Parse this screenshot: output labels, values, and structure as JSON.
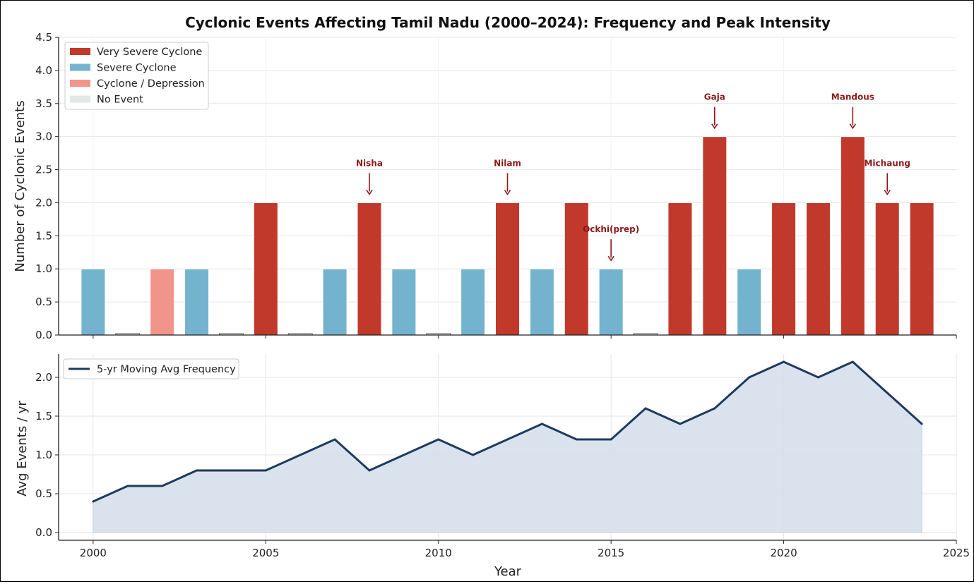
{
  "colors": {
    "very_severe": "#c0392b",
    "severe": "#74b3ce",
    "cyclone": "#f1948a",
    "no_event": "#e5e8e8",
    "line": "#1f3a5f",
    "fill": "#d6e0eb",
    "annotation": "#8b1a1a",
    "grid": "#e6e6e6"
  },
  "chart_data": [
    {
      "type": "bar",
      "title": "Cyclonic Events Affecting Tamil Nadu (2000–2024): Frequency and Peak Intensity",
      "xlabel": "Year",
      "ylabel": "Number of Cyclonic Events",
      "ylim": [
        0,
        4.5
      ],
      "xlim": [
        1999,
        2025
      ],
      "grid": "y",
      "legend_position": "top-left",
      "yticks": [
        "0.0",
        "0.5",
        "1.0",
        "1.5",
        "2.0",
        "2.5",
        "3.0",
        "3.5",
        "4.0",
        "4.5"
      ],
      "legend": [
        {
          "key": "very_severe",
          "label": "Very Severe Cyclone"
        },
        {
          "key": "severe",
          "label": "Severe Cyclone"
        },
        {
          "key": "cyclone",
          "label": "Cyclone / Depression"
        },
        {
          "key": "no_event",
          "label": "No Event"
        }
      ],
      "bars": [
        {
          "year": 2000,
          "value": 1,
          "category": "severe"
        },
        {
          "year": 2001,
          "value": 0,
          "category": "no_event"
        },
        {
          "year": 2002,
          "value": 1,
          "category": "cyclone"
        },
        {
          "year": 2003,
          "value": 1,
          "category": "severe"
        },
        {
          "year": 2004,
          "value": 0,
          "category": "no_event"
        },
        {
          "year": 2005,
          "value": 2,
          "category": "very_severe"
        },
        {
          "year": 2006,
          "value": 0,
          "category": "no_event"
        },
        {
          "year": 2007,
          "value": 1,
          "category": "severe"
        },
        {
          "year": 2008,
          "value": 2,
          "category": "very_severe"
        },
        {
          "year": 2009,
          "value": 1,
          "category": "severe"
        },
        {
          "year": 2010,
          "value": 0,
          "category": "no_event"
        },
        {
          "year": 2011,
          "value": 1,
          "category": "severe"
        },
        {
          "year": 2012,
          "value": 2,
          "category": "very_severe"
        },
        {
          "year": 2013,
          "value": 1,
          "category": "severe"
        },
        {
          "year": 2014,
          "value": 2,
          "category": "very_severe"
        },
        {
          "year": 2015,
          "value": 1,
          "category": "severe"
        },
        {
          "year": 2016,
          "value": 0,
          "category": "no_event"
        },
        {
          "year": 2017,
          "value": 2,
          "category": "very_severe"
        },
        {
          "year": 2018,
          "value": 3,
          "category": "very_severe"
        },
        {
          "year": 2019,
          "value": 1,
          "category": "severe"
        },
        {
          "year": 2020,
          "value": 2,
          "category": "very_severe"
        },
        {
          "year": 2021,
          "value": 2,
          "category": "very_severe"
        },
        {
          "year": 2022,
          "value": 3,
          "category": "very_severe"
        },
        {
          "year": 2023,
          "value": 2,
          "category": "very_severe"
        },
        {
          "year": 2024,
          "value": 2,
          "category": "very_severe"
        }
      ],
      "annotations": [
        {
          "year": 2008,
          "label": "Nisha"
        },
        {
          "year": 2012,
          "label": "Nilam"
        },
        {
          "year": 2015,
          "label": "Ockhi(prep)"
        },
        {
          "year": 2018,
          "label": "Gaja"
        },
        {
          "year": 2022,
          "label": "Mandous"
        },
        {
          "year": 2023,
          "label": "Michaung"
        }
      ]
    },
    {
      "type": "area",
      "xlabel": "Year",
      "ylabel": "Avg Events / yr",
      "ylim": [
        -0.1,
        2.3
      ],
      "xlim": [
        1999,
        2025
      ],
      "grid": "both",
      "legend_position": "top-left",
      "xticks": [
        "2000",
        "2005",
        "2010",
        "2015",
        "2020",
        "2025"
      ],
      "yticks": [
        "0.0",
        "0.5",
        "1.0",
        "1.5",
        "2.0"
      ],
      "series": [
        {
          "name": "5-yr Moving Avg Frequency",
          "x": [
            2000,
            2001,
            2002,
            2003,
            2004,
            2005,
            2006,
            2007,
            2008,
            2009,
            2010,
            2011,
            2012,
            2013,
            2014,
            2015,
            2016,
            2017,
            2018,
            2019,
            2020,
            2021,
            2022,
            2023,
            2024
          ],
          "values": [
            0.4,
            0.6,
            0.6,
            0.8,
            0.8,
            0.8,
            1.0,
            1.2,
            0.8,
            1.0,
            1.2,
            1.0,
            1.2,
            1.4,
            1.2,
            1.2,
            1.6,
            1.4,
            1.6,
            2.0,
            2.2,
            2.0,
            2.2,
            1.8,
            1.4
          ]
        }
      ]
    }
  ]
}
